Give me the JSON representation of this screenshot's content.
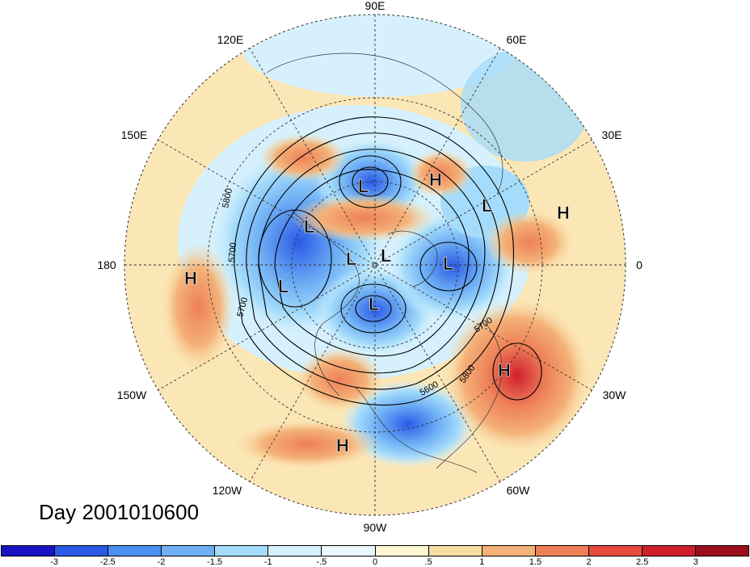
{
  "date_label": "Day 2001010600",
  "longitude_labels": [
    "90E",
    "60E",
    "30E",
    "0",
    "30W",
    "60W",
    "90W",
    "120W",
    "150W",
    "180",
    "150E",
    "120E"
  ],
  "contour_labels": [
    "5800",
    "5700",
    "5700",
    "5700",
    "5600",
    "5800"
  ],
  "pressure_centers": [
    "H",
    "L",
    "L",
    "H",
    "L",
    "L",
    "L",
    "L",
    "H",
    "L",
    "L",
    "H",
    "H"
  ],
  "colorbar": {
    "ticks": [
      "-3",
      "-2.5",
      "-2",
      "-1.5",
      "-1",
      "-.5",
      "0",
      ".5",
      "1",
      "1.5",
      "2",
      "2.5",
      "3"
    ],
    "colors": [
      "#1a13c4",
      "#2a5ae6",
      "#4b8ff0",
      "#6fb0f5",
      "#a5dcfb",
      "#d6f1fd",
      "#e8f8fd",
      "#fdf7d2",
      "#f9dda2",
      "#f4b178",
      "#ee8058",
      "#e84a3e",
      "#cf1f2c",
      "#9c0e1c"
    ]
  }
}
